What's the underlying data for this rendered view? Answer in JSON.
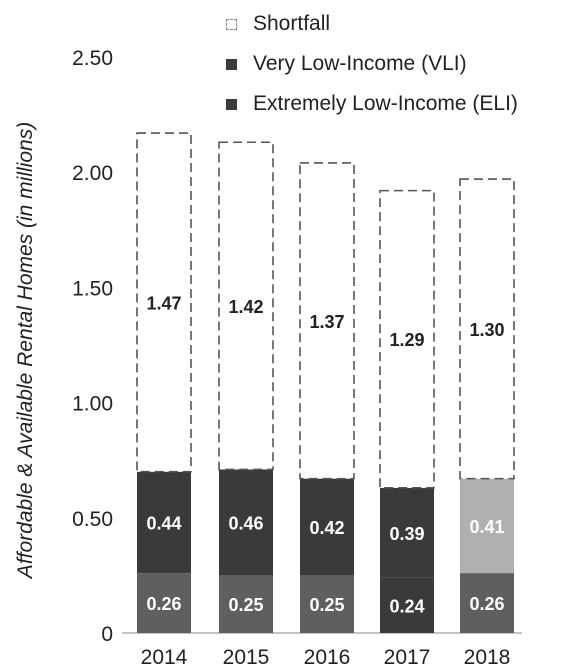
{
  "chart_data": {
    "type": "bar",
    "stacked": true,
    "categories": [
      "2014",
      "2015",
      "2016",
      "2017",
      "2018"
    ],
    "series": [
      {
        "name": "Extremely Low-Income (ELI)",
        "values": [
          0.26,
          0.25,
          0.25,
          0.24,
          0.26
        ],
        "labels": [
          "0.26",
          "0.25",
          "0.25",
          "0.24",
          "0.26"
        ],
        "color": "#5f5f5f"
      },
      {
        "name": "Very Low-Income (VLI)",
        "values": [
          0.44,
          0.46,
          0.42,
          0.39,
          0.41
        ],
        "labels": [
          "0.44",
          "0.46",
          "0.42",
          "0.39",
          "0.41"
        ],
        "color": "#3a3a3a"
      },
      {
        "name": "Shortfall",
        "values": [
          1.47,
          1.42,
          1.37,
          1.29,
          1.3
        ],
        "labels": [
          "1.47",
          "1.42",
          "1.37",
          "1.29",
          "1.30"
        ],
        "color": "#ffffff",
        "style": "dashed outline"
      }
    ],
    "ylabel": "Affordable & Available Rental Homes (in millions)",
    "xlabel": "",
    "ylim": [
      0,
      2.5
    ],
    "yticks": [
      "0",
      "0.50",
      "1.00",
      "1.50",
      "2.00",
      "2.50"
    ],
    "legend_position": "top",
    "grid": false
  },
  "legend": {
    "items": [
      {
        "label": "Shortfall",
        "color": "#ffffff",
        "border": "#888888"
      },
      {
        "label": "Very Low-Income (VLI)",
        "color": "#3a3a3a",
        "border": "#3a3a3a"
      },
      {
        "label": "Extremely Low-Income (ELI)",
        "color": "#3a3a3a",
        "border": "#3a3a3a"
      }
    ]
  }
}
